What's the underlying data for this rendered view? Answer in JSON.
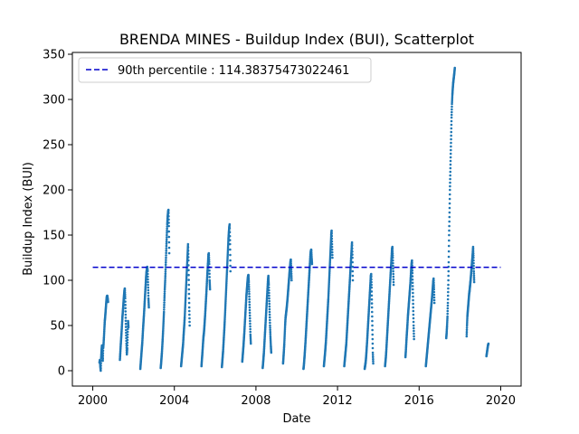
{
  "chart_data": {
    "type": "scatter",
    "title": "BRENDA MINES - Buildup Index (BUI), Scatterplot",
    "xlabel": "Date",
    "ylabel": "Buildup Index (BUI)",
    "xlim": [
      1999.0,
      2021.0
    ],
    "ylim": [
      -17,
      352
    ],
    "x_ticks": [
      2000,
      2004,
      2008,
      2012,
      2016,
      2020
    ],
    "y_ticks": [
      0,
      50,
      100,
      150,
      200,
      250,
      300,
      350
    ],
    "grid": false,
    "legend_position": "upper-left",
    "colors": {
      "points": "#1f77b4",
      "reference": "#0000cc",
      "axes": "#000000"
    },
    "reference_line": {
      "label": "90th percentile : 114.38375473022461",
      "value": 114.38375473022461,
      "x_range": [
        2000.0,
        2020.0
      ],
      "style": "dashed"
    },
    "seasons": [
      {
        "year": 2000,
        "start": 2000.33,
        "end": 2000.75,
        "values": [
          9,
          12,
          5,
          0,
          14,
          22,
          28,
          18,
          11,
          25,
          30,
          38,
          47,
          55,
          60,
          66,
          72,
          78,
          82,
          83,
          80,
          76
        ]
      },
      {
        "year": 2001,
        "start": 2001.33,
        "end": 2001.75,
        "values": [
          12,
          20,
          28,
          35,
          42,
          50,
          58,
          64,
          70,
          77,
          83,
          88,
          91,
          80,
          62,
          45,
          30,
          18,
          25,
          40,
          55,
          48
        ]
      },
      {
        "year": 2002,
        "start": 2002.33,
        "end": 2002.75,
        "values": [
          2,
          8,
          14,
          20,
          26,
          32,
          40,
          48,
          55,
          62,
          70,
          78,
          86,
          94,
          102,
          108,
          112,
          115,
          110,
          95,
          80,
          70
        ]
      },
      {
        "year": 2003,
        "start": 2003.33,
        "end": 2003.75,
        "values": [
          3,
          8,
          14,
          20,
          28,
          36,
          45,
          55,
          65,
          78,
          90,
          100,
          112,
          125,
          138,
          150,
          162,
          170,
          175,
          178,
          160,
          130
        ]
      },
      {
        "year": 2004,
        "start": 2004.33,
        "end": 2004.75,
        "values": [
          5,
          10,
          15,
          20,
          25,
          30,
          38,
          45,
          52,
          60,
          70,
          80,
          90,
          100,
          110,
          120,
          130,
          140,
          122,
          95,
          70,
          50
        ]
      },
      {
        "year": 2005,
        "start": 2005.33,
        "end": 2005.75,
        "values": [
          5,
          12,
          18,
          25,
          32,
          38,
          42,
          48,
          55,
          62,
          70,
          78,
          86,
          95,
          104,
          112,
          120,
          128,
          130,
          118,
          100,
          90
        ]
      },
      {
        "year": 2006,
        "start": 2006.33,
        "end": 2006.75,
        "values": [
          4,
          10,
          16,
          22,
          30,
          38,
          46,
          55,
          65,
          75,
          85,
          95,
          105,
          115,
          125,
          135,
          145,
          152,
          158,
          162,
          140,
          110
        ]
      },
      {
        "year": 2007,
        "start": 2007.33,
        "end": 2007.75,
        "values": [
          10,
          16,
          22,
          28,
          35,
          42,
          50,
          58,
          66,
          74,
          82,
          88,
          94,
          100,
          104,
          106,
          98,
          85,
          70,
          55,
          40,
          30
        ]
      },
      {
        "year": 2008,
        "start": 2008.33,
        "end": 2008.75,
        "values": [
          3,
          8,
          14,
          20,
          28,
          36,
          44,
          52,
          60,
          68,
          76,
          84,
          92,
          100,
          105,
          95,
          80,
          65,
          50,
          38,
          28,
          20
        ]
      },
      {
        "year": 2009,
        "start": 2009.33,
        "end": 2009.75,
        "values": [
          8,
          15,
          22,
          30,
          40,
          50,
          58,
          62,
          66,
          70,
          75,
          80,
          86,
          92,
          98,
          104,
          110,
          115,
          120,
          123,
          112,
          100
        ]
      },
      {
        "year": 2010,
        "start": 2010.33,
        "end": 2010.75,
        "values": [
          2,
          6,
          12,
          18,
          25,
          32,
          40,
          48,
          56,
          64,
          72,
          80,
          88,
          96,
          104,
          112,
          120,
          128,
          132,
          134,
          125,
          118
        ]
      },
      {
        "year": 2011,
        "start": 2011.33,
        "end": 2011.75,
        "values": [
          5,
          10,
          15,
          20,
          26,
          32,
          40,
          48,
          56,
          64,
          72,
          80,
          90,
          100,
          110,
          120,
          130,
          140,
          150,
          155,
          140,
          125
        ]
      },
      {
        "year": 2012,
        "start": 2012.33,
        "end": 2012.75,
        "values": [
          5,
          10,
          15,
          20,
          25,
          30,
          38,
          46,
          54,
          62,
          70,
          78,
          86,
          94,
          102,
          110,
          118,
          126,
          134,
          142,
          125,
          100
        ]
      },
      {
        "year": 2013,
        "start": 2013.33,
        "end": 2013.75,
        "values": [
          2,
          5,
          8,
          12,
          18,
          25,
          32,
          40,
          48,
          56,
          64,
          72,
          80,
          88,
          96,
          104,
          107,
          92,
          70,
          45,
          20,
          8
        ]
      },
      {
        "year": 2014,
        "start": 2014.33,
        "end": 2014.75,
        "values": [
          5,
          10,
          15,
          22,
          30,
          38,
          46,
          54,
          62,
          70,
          78,
          86,
          94,
          102,
          110,
          118,
          126,
          134,
          137,
          125,
          110,
          95
        ]
      },
      {
        "year": 2015,
        "start": 2015.33,
        "end": 2015.75,
        "values": [
          15,
          22,
          30,
          38,
          45,
          52,
          60,
          66,
          72,
          78,
          84,
          90,
          96,
          104,
          112,
          118,
          122,
          108,
          90,
          70,
          50,
          35
        ]
      },
      {
        "year": 2016,
        "start": 2016.33,
        "end": 2016.75,
        "values": [
          5,
          10,
          15,
          20,
          25,
          30,
          35,
          40,
          45,
          50,
          55,
          60,
          65,
          70,
          75,
          80,
          86,
          92,
          98,
          102,
          90,
          75
        ]
      },
      {
        "year": 2017,
        "start": 2017.33,
        "end": 2017.75,
        "values": [
          36,
          42,
          50,
          60,
          75,
          95,
          120,
          150,
          175,
          200,
          220,
          240,
          260,
          280,
          295,
          305,
          312,
          318,
          322,
          326,
          330,
          335
        ]
      },
      {
        "year": 2018,
        "start": 2018.33,
        "end": 2018.7,
        "values": [
          38,
          50,
          60,
          65,
          70,
          75,
          80,
          85,
          88,
          92,
          96,
          100,
          105,
          110,
          115,
          120,
          125,
          130,
          137,
          125,
          110,
          98
        ]
      },
      {
        "year": 2019,
        "start": 2019.3,
        "end": 2019.4,
        "values": [
          16,
          20,
          24,
          28,
          30
        ]
      }
    ]
  }
}
